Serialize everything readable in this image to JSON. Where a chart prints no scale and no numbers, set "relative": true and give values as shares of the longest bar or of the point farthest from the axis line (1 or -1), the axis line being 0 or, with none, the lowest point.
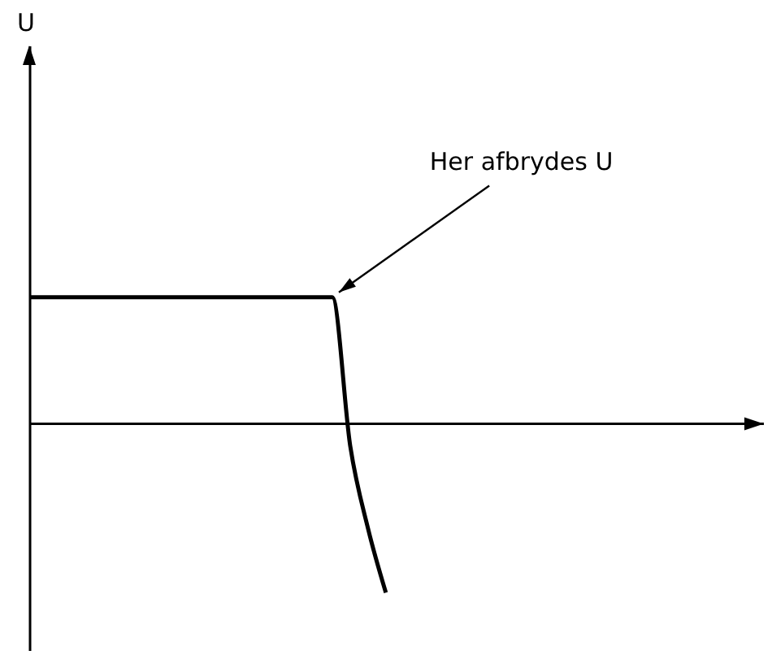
{
  "chart_data": {
    "type": "line",
    "relative": true,
    "categories": [
      null,
      null,
      null,
      null,
      null,
      null,
      null,
      null,
      null,
      null,
      null,
      null,
      null,
      null,
      null,
      null,
      null,
      null,
      null,
      null,
      null
    ],
    "values": [
      0.75,
      0.75,
      0.75,
      0.75,
      0.75,
      0.75,
      0.75,
      0.75,
      0.75,
      0.75,
      0.75,
      0.75,
      0.75,
      0.75,
      0.75,
      0.75,
      0.75,
      0.75,
      -0.13,
      -0.62,
      -1
    ],
    "color": "#000000",
    "annotations": [
      "U",
      "Her afbrydes U"
    ]
  }
}
